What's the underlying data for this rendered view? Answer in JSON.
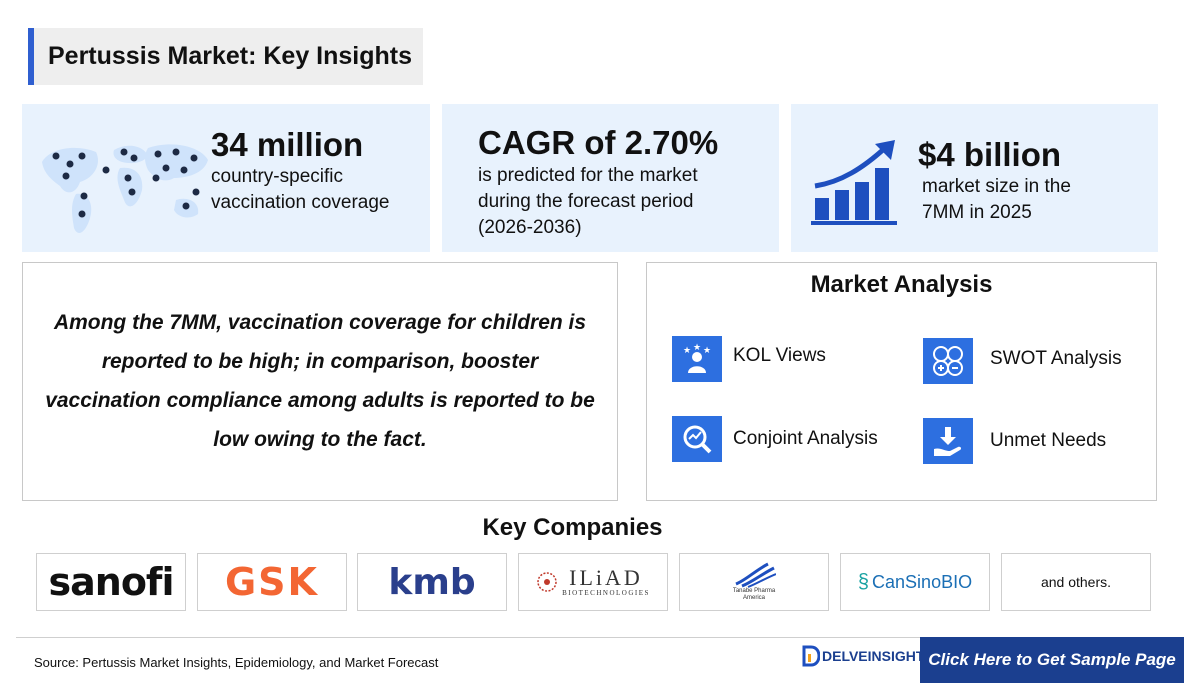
{
  "title": "Pertussis Market: Key Insights",
  "stats": [
    {
      "value": "34 million",
      "lines": [
        "country-specific",
        "vaccination coverage"
      ],
      "icon": "world-map-icon"
    },
    {
      "value": "CAGR of 2.70%",
      "lines": [
        "is predicted for the market",
        "during the forecast period",
        "(2026-2036)"
      ]
    },
    {
      "value": "$4 billion",
      "lines": [
        "market size in the",
        "7MM in 2025"
      ],
      "icon": "growth-chart-icon"
    }
  ],
  "quote": "Among the 7MM, vaccination coverage for children is reported to be high; in comparison, booster vaccination compliance among adults is reported to be low owing to the fact.",
  "analysis": {
    "title": "Market Analysis",
    "items": [
      {
        "label": "KOL Views",
        "icon": "expert-icon"
      },
      {
        "label": "SWOT Analysis",
        "icon": "swot-icon"
      },
      {
        "label": "Conjoint Analysis",
        "icon": "analysis-icon"
      },
      {
        "label": "Unmet Needs",
        "icon": "download-hand-icon"
      }
    ]
  },
  "companies": {
    "title": "Key Companies",
    "logos": [
      "sanofi",
      "GSK",
      "kmb",
      "ILiAD",
      "BIOTECHNOLOGIES",
      "Tanabe Pharma",
      "America",
      "CanSinoBIO"
    ],
    "others": "and others."
  },
  "footer": {
    "source": "Source: Pertussis Market Insights, Epidemiology, and Market Forecast",
    "brand": "DELVEINSIGHT",
    "cta": "Click Here to Get Sample Page"
  },
  "colors": {
    "accent": "#2d6fe0",
    "card_bg": "#e8f2fd",
    "cta_bg": "#1b3f8f",
    "gsk": "#f36633",
    "sanofi_dot": "#7a00e6"
  }
}
